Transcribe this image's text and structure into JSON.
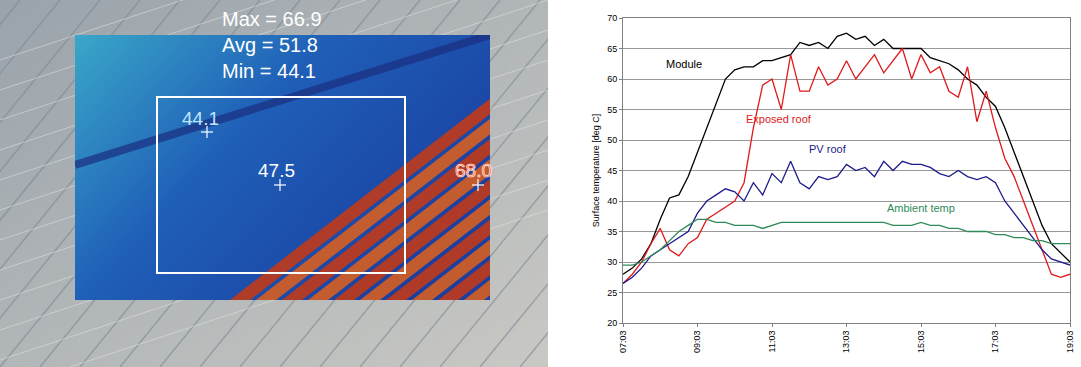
{
  "chart_data": {
    "type": "line",
    "y_label": "Surface temperature [deg C]",
    "categories": [
      "07:03",
      null,
      null,
      null,
      null,
      null,
      null,
      null,
      "09:03",
      null,
      null,
      null,
      null,
      null,
      null,
      null,
      "11:03",
      null,
      null,
      null,
      null,
      null,
      null,
      null,
      "13:03",
      null,
      null,
      null,
      null,
      null,
      null,
      null,
      "15:03",
      null,
      null,
      null,
      null,
      null,
      null,
      null,
      "17:03",
      null,
      null,
      null,
      null,
      null,
      null,
      null,
      "19:03"
    ],
    "series": [
      {
        "name": "Module",
        "color": "#000000",
        "values": [
          28,
          29,
          30.5,
          33,
          37,
          40.5,
          41,
          44,
          48,
          52,
          56,
          60,
          61.5,
          62,
          62,
          63,
          63,
          63.5,
          64,
          66,
          65.5,
          66,
          65,
          67,
          67.5,
          66.5,
          67,
          65.5,
          66.5,
          65,
          65,
          65,
          65,
          63.5,
          63,
          62.5,
          61.5,
          60,
          59,
          57,
          55.5,
          52,
          48,
          44,
          40,
          36,
          33,
          31.5,
          30
        ]
      },
      {
        "name": "Exposed roof",
        "color": "#e0191b",
        "values": [
          26.5,
          28,
          30,
          33,
          35.5,
          32,
          31,
          33,
          34,
          37,
          38,
          39,
          40,
          43,
          52,
          59,
          60,
          55,
          64,
          58,
          58,
          62,
          59,
          60,
          63,
          60,
          62,
          64,
          61,
          63,
          65,
          60,
          64,
          61,
          62,
          58,
          57,
          62,
          53,
          58,
          52,
          47,
          44,
          40,
          36,
          32,
          28,
          27.5,
          28
        ]
      },
      {
        "name": "PV roof",
        "color": "#1c1c8c",
        "values": [
          26.5,
          27.5,
          29,
          31,
          32,
          33,
          34,
          35,
          38,
          40,
          41,
          42,
          41.5,
          40,
          43,
          41,
          44.5,
          43,
          46.5,
          43,
          42,
          44,
          43.5,
          44,
          46,
          45,
          45.5,
          44,
          46.5,
          45,
          46.5,
          46,
          46,
          45.5,
          44.5,
          44,
          45,
          44,
          43.5,
          44,
          43,
          40,
          38,
          36,
          34,
          32,
          30.5,
          30,
          29.5
        ]
      },
      {
        "name": "Ambient temp",
        "color": "#2e8b57",
        "values": [
          29.5,
          29.5,
          30,
          31,
          32,
          33.5,
          35,
          36,
          37,
          37,
          36.5,
          36.5,
          36,
          36,
          36,
          35.5,
          36,
          36.5,
          36.5,
          36.5,
          36.5,
          36.5,
          36.5,
          36.5,
          36.5,
          36.5,
          36.5,
          36.5,
          36.5,
          36,
          36,
          36,
          36.5,
          36,
          36,
          35.5,
          35.5,
          35,
          35,
          35,
          34.5,
          34.5,
          34,
          34,
          33.5,
          33.5,
          33,
          33,
          33
        ]
      }
    ],
    "ylim": [
      20,
      70
    ],
    "yticks": [
      20,
      25,
      30,
      35,
      40,
      45,
      50,
      55,
      60,
      65,
      70
    ],
    "grid": true
  },
  "thermal_image": {
    "stats": [
      "Max = 66.9",
      "Avg = 51.8",
      "Min = 44.1"
    ],
    "spot_readings": [
      "44.1",
      "47.5",
      "68.0"
    ]
  }
}
